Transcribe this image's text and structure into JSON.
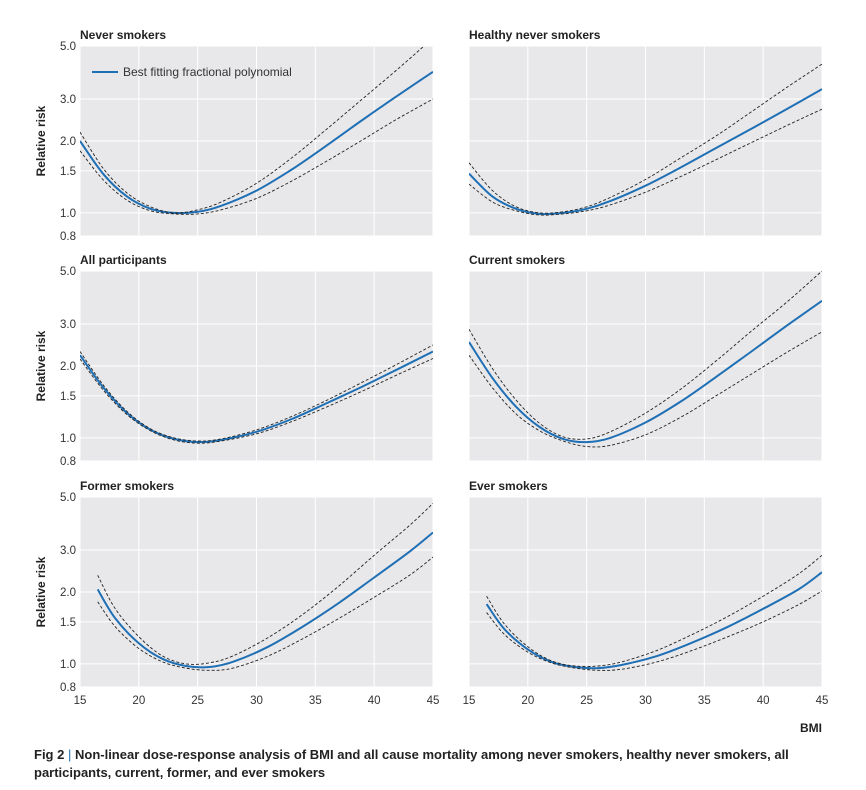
{
  "figure": {
    "caption_label": "Fig 2",
    "caption_separator": "|",
    "caption_text": "Non-linear dose-response analysis of BMI and all cause mortality among never smokers, healthy never smokers, all participants, current, former, and ever smokers",
    "y_axis_label": "Relative risk",
    "x_axis_label": "BMI",
    "legend_label": "Best fitting fractional polynomial",
    "colors": {
      "panel_bg": "#e8e8ea",
      "curve": "#1f6fb5",
      "ci": "#222222",
      "grid": "#ffffff"
    }
  },
  "chart_data": [
    {
      "type": "line",
      "title": "Never smokers",
      "ylabel": "Relative risk",
      "xlabel": "",
      "xlim": [
        15,
        45
      ],
      "ylim": [
        0.8,
        5.0
      ],
      "yscale": "log",
      "xticks": [],
      "yticks": [
        0.8,
        1.0,
        1.5,
        2.0,
        3.0,
        5.0
      ],
      "yticklabels": [
        "0.8",
        "1.0",
        "1.5",
        "2.0",
        "3.0",
        "5.0"
      ],
      "legend": "top-left",
      "series": [
        {
          "name": "Best fitting fractional polynomial",
          "x": [
            15,
            17,
            19,
            21,
            23,
            25,
            27,
            30,
            33,
            36,
            39,
            42,
            45
          ],
          "y": [
            2.0,
            1.45,
            1.17,
            1.04,
            1.0,
            1.01,
            1.07,
            1.24,
            1.52,
            1.92,
            2.45,
            3.1,
            3.9
          ]
        },
        {
          "x": [
            15,
            17,
            19,
            21,
            23,
            25,
            27,
            30,
            33,
            36,
            39,
            42,
            45
          ],
          "y": [
            2.18,
            1.53,
            1.21,
            1.06,
            1.0,
            1.03,
            1.11,
            1.33,
            1.7,
            2.25,
            3.0,
            4.0,
            5.4
          ]
        },
        {
          "x": [
            15,
            17,
            19,
            21,
            23,
            25,
            27,
            30,
            33,
            36,
            39,
            42,
            45
          ],
          "y": [
            1.82,
            1.37,
            1.13,
            1.02,
            0.99,
            0.99,
            1.03,
            1.15,
            1.36,
            1.65,
            2.02,
            2.48,
            3.0
          ]
        }
      ]
    },
    {
      "type": "line",
      "title": "Healthy never smokers",
      "xlabel": "",
      "xlim": [
        15,
        45
      ],
      "ylim": [
        0.8,
        5.0
      ],
      "yscale": "log",
      "xticks": [],
      "yticks": [],
      "series": [
        {
          "name": "Best fitting fractional polynomial",
          "x": [
            15,
            17,
            19,
            21,
            23,
            25,
            27,
            30,
            33,
            36,
            39,
            42,
            45
          ],
          "y": [
            1.46,
            1.17,
            1.04,
            0.99,
            1.0,
            1.04,
            1.12,
            1.3,
            1.55,
            1.87,
            2.25,
            2.72,
            3.3
          ]
        },
        {
          "x": [
            15,
            17,
            19,
            21,
            23,
            25,
            27,
            30,
            33,
            36,
            39,
            42,
            45
          ],
          "y": [
            1.62,
            1.24,
            1.06,
            1.0,
            1.01,
            1.06,
            1.16,
            1.38,
            1.7,
            2.1,
            2.65,
            3.35,
            4.2
          ]
        },
        {
          "x": [
            15,
            17,
            19,
            21,
            23,
            25,
            27,
            30,
            33,
            36,
            39,
            42,
            45
          ],
          "y": [
            1.32,
            1.11,
            1.02,
            0.98,
            0.99,
            1.02,
            1.08,
            1.22,
            1.42,
            1.67,
            1.97,
            2.32,
            2.72
          ]
        }
      ]
    },
    {
      "type": "line",
      "title": "All participants",
      "ylabel": "Relative risk",
      "xlabel": "",
      "xlim": [
        15,
        45
      ],
      "ylim": [
        0.8,
        5.0
      ],
      "yscale": "log",
      "xticks": [],
      "yticks": [
        0.8,
        1.0,
        1.5,
        2.0,
        3.0,
        5.0
      ],
      "yticklabels": [
        "0.8",
        "1.0",
        "1.5",
        "2.0",
        "3.0",
        "5.0"
      ],
      "series": [
        {
          "name": "Best fitting fractional polynomial",
          "x": [
            15,
            17,
            19,
            21,
            23,
            25,
            27,
            30,
            33,
            36,
            39,
            42,
            45
          ],
          "y": [
            2.22,
            1.62,
            1.27,
            1.08,
            0.99,
            0.96,
            0.98,
            1.06,
            1.2,
            1.4,
            1.64,
            1.94,
            2.3
          ]
        },
        {
          "x": [
            15,
            17,
            19,
            21,
            23,
            25,
            27,
            30,
            33,
            36,
            39,
            42,
            45
          ],
          "y": [
            2.3,
            1.66,
            1.29,
            1.09,
            1.0,
            0.97,
            0.99,
            1.08,
            1.23,
            1.44,
            1.71,
            2.04,
            2.45
          ]
        },
        {
          "x": [
            15,
            17,
            19,
            21,
            23,
            25,
            27,
            30,
            33,
            36,
            39,
            42,
            45
          ],
          "y": [
            2.14,
            1.58,
            1.25,
            1.07,
            0.98,
            0.95,
            0.97,
            1.04,
            1.17,
            1.35,
            1.57,
            1.84,
            2.15
          ]
        }
      ]
    },
    {
      "type": "line",
      "title": "Current smokers",
      "xlabel": "",
      "xlim": [
        15,
        45
      ],
      "ylim": [
        0.8,
        5.0
      ],
      "yscale": "log",
      "xticks": [],
      "yticks": [],
      "series": [
        {
          "name": "Best fitting fractional polynomial",
          "x": [
            15,
            17,
            19,
            21,
            23,
            25,
            27,
            30,
            33,
            36,
            39,
            42,
            45
          ],
          "y": [
            2.52,
            1.78,
            1.35,
            1.11,
            0.99,
            0.96,
            1.0,
            1.16,
            1.42,
            1.8,
            2.3,
            2.95,
            3.75
          ]
        },
        {
          "x": [
            15,
            17,
            19,
            21,
            23,
            25,
            27,
            30,
            33,
            36,
            39,
            42,
            45
          ],
          "y": [
            2.85,
            1.95,
            1.44,
            1.15,
            1.01,
            0.99,
            1.06,
            1.27,
            1.6,
            2.1,
            2.8,
            3.7,
            5.0
          ]
        },
        {
          "x": [
            15,
            17,
            19,
            21,
            23,
            25,
            27,
            30,
            33,
            36,
            39,
            42,
            45
          ],
          "y": [
            2.22,
            1.62,
            1.26,
            1.07,
            0.97,
            0.92,
            0.93,
            1.03,
            1.22,
            1.5,
            1.85,
            2.28,
            2.78
          ]
        }
      ]
    },
    {
      "type": "line",
      "title": "Former smokers",
      "ylabel": "Relative risk",
      "xlabel": "",
      "xlim": [
        15,
        45
      ],
      "ylim": [
        0.8,
        5.0
      ],
      "yscale": "log",
      "xticks": [
        15,
        20,
        25,
        30,
        35,
        40,
        45
      ],
      "xticklabels": [
        "15",
        "20",
        "25",
        "30",
        "35",
        "40",
        "45"
      ],
      "yticks": [
        0.8,
        1.0,
        1.5,
        2.0,
        3.0,
        5.0
      ],
      "yticklabels": [
        "0.8",
        "1.0",
        "1.5",
        "2.0",
        "3.0",
        "5.0"
      ],
      "series": [
        {
          "name": "Best fitting fractional polynomial",
          "x": [
            16.5,
            18,
            20,
            22,
            24,
            26,
            28,
            31,
            34,
            37,
            40,
            43,
            45
          ],
          "y": [
            2.05,
            1.55,
            1.22,
            1.05,
            0.98,
            0.97,
            1.02,
            1.18,
            1.44,
            1.8,
            2.3,
            2.95,
            3.55
          ]
        },
        {
          "x": [
            16.5,
            18,
            20,
            22,
            24,
            26,
            28,
            31,
            34,
            37,
            40,
            43,
            45
          ],
          "y": [
            2.35,
            1.7,
            1.3,
            1.08,
            1.0,
            1.01,
            1.08,
            1.29,
            1.62,
            2.12,
            2.85,
            3.8,
            4.7
          ]
        },
        {
          "x": [
            16.5,
            18,
            20,
            22,
            24,
            26,
            28,
            31,
            34,
            37,
            40,
            43,
            45
          ],
          "y": [
            1.82,
            1.43,
            1.16,
            1.02,
            0.96,
            0.94,
            0.96,
            1.08,
            1.28,
            1.55,
            1.9,
            2.35,
            2.8
          ]
        }
      ]
    },
    {
      "type": "line",
      "title": "Ever smokers",
      "xlabel": "BMI",
      "xlim": [
        15,
        45
      ],
      "ylim": [
        0.8,
        5.0
      ],
      "yscale": "log",
      "xticks": [
        15,
        20,
        25,
        30,
        35,
        40,
        45
      ],
      "xticklabels": [
        "15",
        "20",
        "25",
        "30",
        "35",
        "40",
        "45"
      ],
      "yticks": [],
      "series": [
        {
          "name": "Best fitting fractional polynomial",
          "x": [
            16.5,
            18,
            20,
            22,
            24,
            26,
            28,
            31,
            34,
            37,
            40,
            43,
            45
          ],
          "y": [
            1.78,
            1.4,
            1.15,
            1.02,
            0.97,
            0.96,
            0.99,
            1.08,
            1.23,
            1.43,
            1.7,
            2.05,
            2.42
          ]
        },
        {
          "x": [
            16.5,
            18,
            20,
            22,
            24,
            26,
            28,
            31,
            34,
            37,
            40,
            43,
            45
          ],
          "y": [
            1.92,
            1.47,
            1.18,
            1.03,
            0.98,
            0.98,
            1.02,
            1.14,
            1.33,
            1.58,
            1.92,
            2.38,
            2.85
          ]
        },
        {
          "x": [
            16.5,
            18,
            20,
            22,
            24,
            26,
            28,
            31,
            34,
            37,
            40,
            43,
            45
          ],
          "y": [
            1.64,
            1.33,
            1.12,
            1.01,
            0.96,
            0.94,
            0.95,
            1.02,
            1.14,
            1.3,
            1.5,
            1.77,
            2.02
          ]
        }
      ]
    }
  ]
}
